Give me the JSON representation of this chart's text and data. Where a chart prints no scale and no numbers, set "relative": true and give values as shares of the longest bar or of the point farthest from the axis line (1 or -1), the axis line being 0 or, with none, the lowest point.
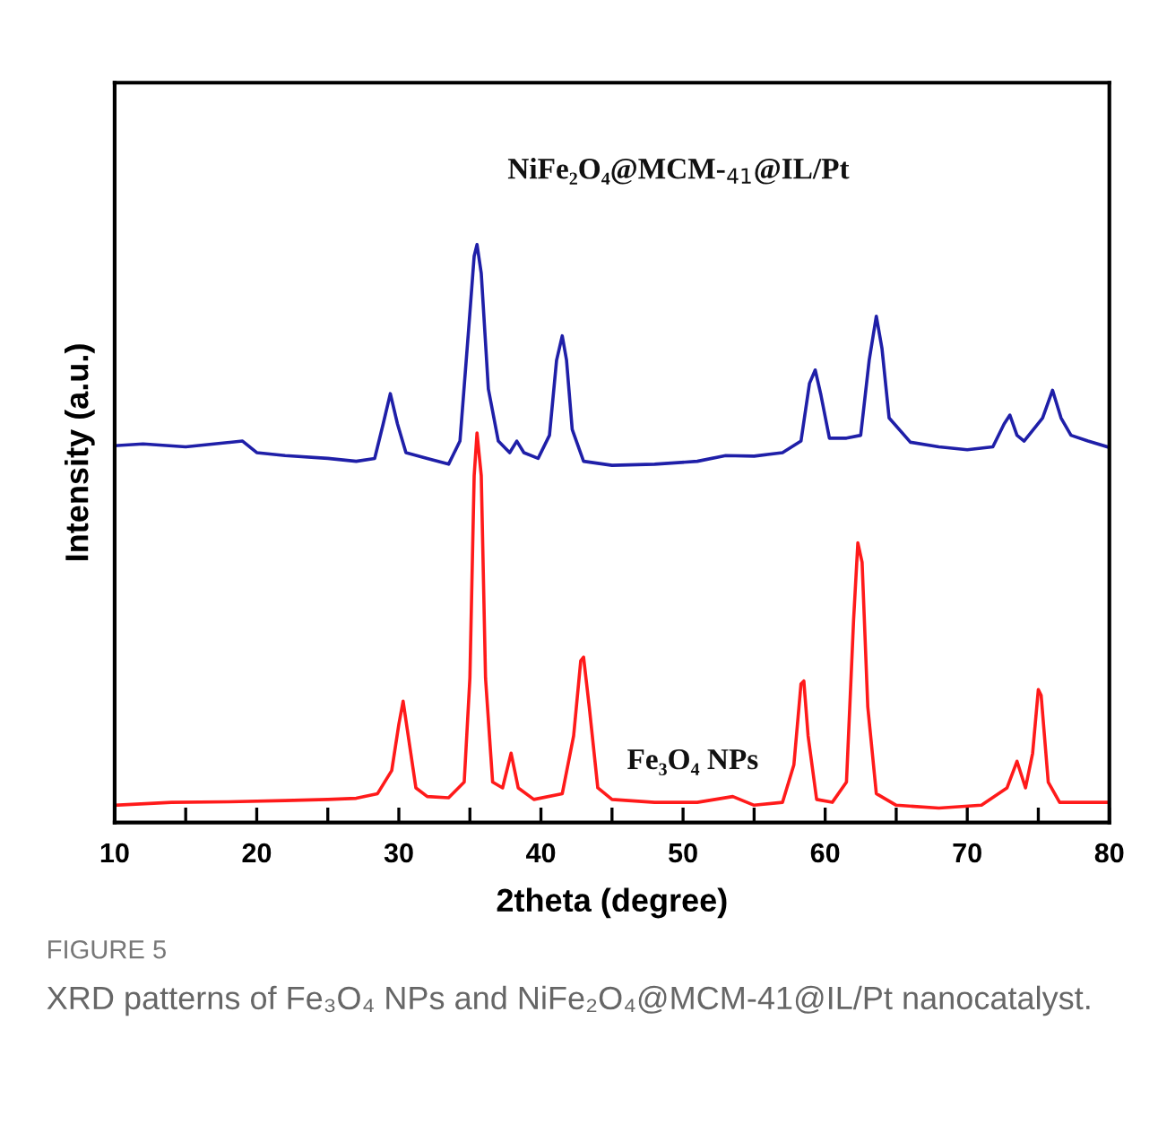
{
  "chart_data": {
    "type": "line",
    "relative": true,
    "xlabel": "2theta (degree)",
    "ylabel": "Intensity (a.u.)",
    "xlim": [
      10,
      80
    ],
    "xticks": [
      10,
      {
        "value": 15,
        "label": null
      },
      20,
      {
        "value": 25,
        "label": null
      },
      30,
      {
        "value": 35,
        "label": null
      },
      40,
      {
        "value": 45,
        "label": null
      },
      50,
      {
        "value": 55,
        "label": null
      },
      60,
      {
        "value": 65,
        "label": null
      },
      70,
      {
        "value": 75,
        "label": null
      },
      80
    ],
    "tick_labels": "x",
    "grid": false,
    "legend": false,
    "marker": "none",
    "line_style": "solid",
    "series": [
      {
        "name": "NiFe₂O₄@MCM-$_{41}$@IL/Pt",
        "color": "#1f1fa8",
        "x": [
          10,
          12,
          15,
          17,
          19,
          20,
          22,
          25,
          27,
          28.3,
          28.9,
          29.4,
          29.9,
          30.5,
          32,
          33.5,
          34.3,
          34.9,
          35.3,
          35.5,
          35.8,
          36.3,
          37,
          37.8,
          38.3,
          38.8,
          39.8,
          40.6,
          41.1,
          41.5,
          41.8,
          42.2,
          43,
          45,
          48,
          51,
          53,
          55,
          57,
          58.3,
          58.9,
          59.3,
          59.7,
          60.3,
          61.5,
          62.5,
          63.1,
          63.6,
          64,
          64.5,
          66,
          68,
          70,
          71.8,
          72.6,
          73,
          73.5,
          74,
          75.3,
          76,
          76.6,
          77.3,
          78.5,
          80
        ],
        "values": [
          0.652,
          0.655,
          0.65,
          0.655,
          0.66,
          0.64,
          0.635,
          0.63,
          0.625,
          0.63,
          0.69,
          0.742,
          0.69,
          0.64,
          0.63,
          0.62,
          0.66,
          0.85,
          0.98,
          1.0,
          0.95,
          0.75,
          0.66,
          0.64,
          0.66,
          0.64,
          0.63,
          0.67,
          0.8,
          0.842,
          0.8,
          0.68,
          0.625,
          0.618,
          0.62,
          0.625,
          0.635,
          0.634,
          0.64,
          0.66,
          0.76,
          0.783,
          0.74,
          0.665,
          0.665,
          0.67,
          0.8,
          0.876,
          0.82,
          0.7,
          0.658,
          0.65,
          0.645,
          0.65,
          0.69,
          0.705,
          0.67,
          0.66,
          0.7,
          0.748,
          0.7,
          0.67,
          0.66,
          0.649
        ]
      },
      {
        "name": "Fe₃O₄ NPs",
        "color": "#ff1a1a",
        "x": [
          10,
          14,
          18,
          22,
          25,
          27,
          28.5,
          29.5,
          30.0,
          30.3,
          30.6,
          31.2,
          32,
          33.5,
          34.6,
          35.0,
          35.3,
          35.5,
          35.8,
          36.1,
          36.6,
          37.3,
          37.9,
          38.4,
          39.5,
          41.5,
          42.3,
          42.8,
          43.0,
          43.4,
          44,
          45,
          48,
          51,
          53.5,
          55,
          57,
          57.8,
          58.3,
          58.5,
          58.8,
          59.4,
          60.5,
          61.5,
          62.0,
          62.3,
          62.6,
          63.0,
          63.6,
          65,
          68,
          71,
          72.8,
          73.5,
          74.1,
          74.6,
          75.0,
          75.2,
          75.7,
          76.5,
          80
        ],
        "values": [
          0.03,
          0.035,
          0.036,
          0.038,
          0.04,
          0.042,
          0.05,
          0.09,
          0.17,
          0.21,
          0.16,
          0.06,
          0.045,
          0.043,
          0.07,
          0.25,
          0.6,
          0.674,
          0.6,
          0.25,
          0.07,
          0.06,
          0.12,
          0.06,
          0.04,
          0.05,
          0.15,
          0.28,
          0.286,
          0.2,
          0.06,
          0.04,
          0.035,
          0.035,
          0.045,
          0.03,
          0.035,
          0.1,
          0.24,
          0.245,
          0.15,
          0.04,
          0.035,
          0.07,
          0.35,
          0.484,
          0.45,
          0.2,
          0.05,
          0.03,
          0.025,
          0.03,
          0.06,
          0.106,
          0.06,
          0.12,
          0.23,
          0.22,
          0.07,
          0.035,
          0.035
        ]
      }
    ],
    "annotations": [
      "FIGURE 5",
      "XRD patterns of Fe₃O₄ NPs and NiFe₂O₄@MCM-41@IL/Pt nanocatalyst."
    ]
  }
}
